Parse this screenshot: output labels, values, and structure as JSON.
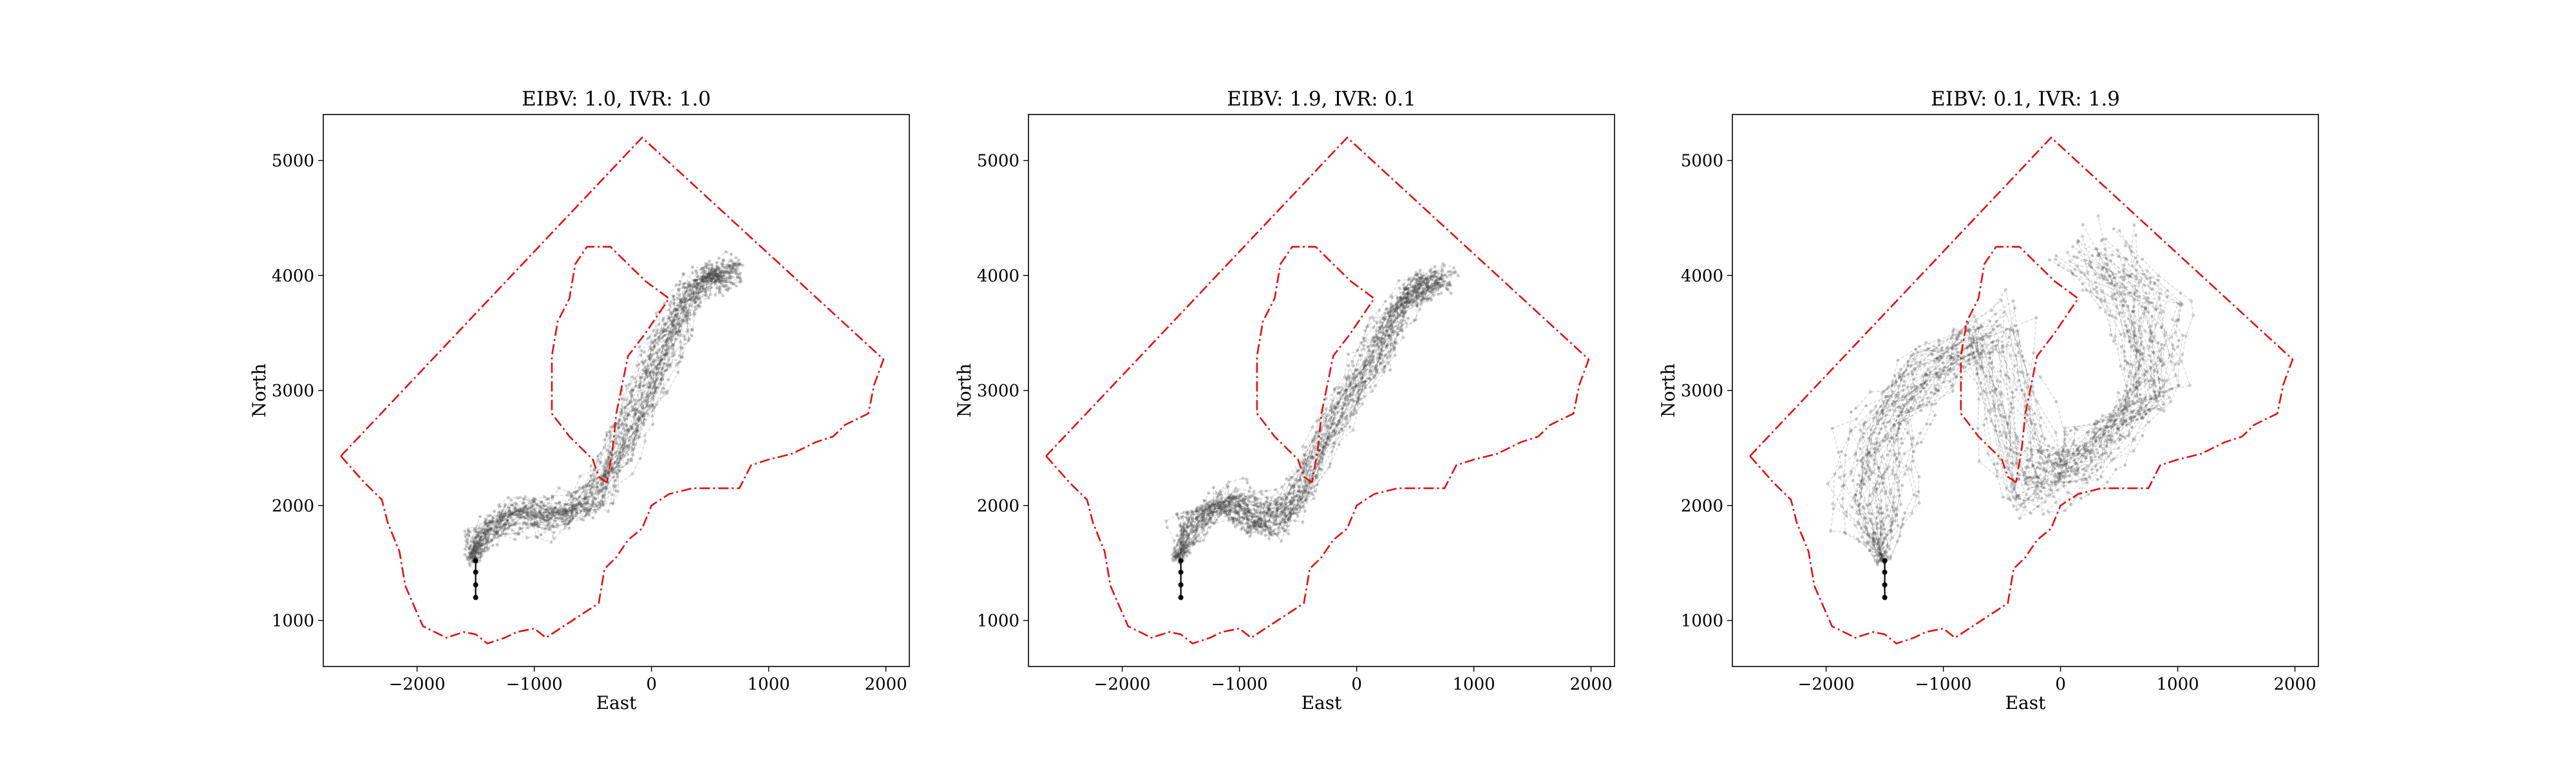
{
  "chart_data": [
    {
      "type": "line",
      "title": "EIBV: 1.0, IVR: 1.0",
      "xlabel": "East",
      "ylabel": "North",
      "xlim": [
        -2800,
        2200
      ],
      "ylim": [
        600,
        5400
      ],
      "xticks": [
        -2000,
        -1000,
        0,
        1000,
        2000
      ],
      "yticks": [
        1000,
        2000,
        3000,
        4000,
        5000
      ],
      "xtick_labels": [
        "−2000",
        "−1000",
        "0",
        "1000",
        "2000"
      ],
      "ytick_labels": [
        "1000",
        "2000",
        "3000",
        "4000",
        "5000"
      ],
      "grid": false,
      "trajectory_count": 40,
      "corridor_path": [
        [
          -1520,
          1550
        ],
        [
          -1400,
          1800
        ],
        [
          -1100,
          1950
        ],
        [
          -800,
          1900
        ],
        [
          -500,
          2050
        ],
        [
          -250,
          2500
        ],
        [
          -50,
          3000
        ],
        [
          150,
          3400
        ],
        [
          300,
          3800
        ],
        [
          500,
          4050
        ],
        [
          700,
          4000
        ]
      ],
      "corridor_spread": 170,
      "start_point": [
        -1500,
        1200
      ],
      "start_stem_top": [
        -1500,
        1520
      ]
    },
    {
      "type": "line",
      "title": "EIBV: 1.9, IVR: 0.1",
      "xlabel": "East",
      "ylabel": "North",
      "xlim": [
        -2800,
        2200
      ],
      "ylim": [
        600,
        5400
      ],
      "xticks": [
        -2000,
        -1000,
        0,
        1000,
        2000
      ],
      "yticks": [
        1000,
        2000,
        3000,
        4000,
        5000
      ],
      "xtick_labels": [
        "−2000",
        "−1000",
        "0",
        "1000",
        "2000"
      ],
      "ytick_labels": [
        "1000",
        "2000",
        "3000",
        "4000",
        "5000"
      ],
      "grid": false,
      "trajectory_count": 40,
      "corridor_path": [
        [
          -1520,
          1550
        ],
        [
          -1350,
          1900
        ],
        [
          -1100,
          2050
        ],
        [
          -900,
          1950
        ],
        [
          -700,
          1850
        ],
        [
          -450,
          2150
        ],
        [
          -150,
          2800
        ],
        [
          150,
          3300
        ],
        [
          350,
          3650
        ],
        [
          550,
          3900
        ],
        [
          700,
          3950
        ]
      ],
      "corridor_spread": 170,
      "start_point": [
        -1500,
        1200
      ],
      "start_stem_top": [
        -1500,
        1520
      ]
    },
    {
      "type": "line",
      "title": "EIBV: 0.1, IVR: 1.9",
      "xlabel": "East",
      "ylabel": "North",
      "xlim": [
        -2800,
        2200
      ],
      "ylim": [
        600,
        5400
      ],
      "xticks": [
        -2000,
        -1000,
        0,
        1000,
        2000
      ],
      "yticks": [
        1000,
        2000,
        3000,
        4000,
        5000
      ],
      "xtick_labels": [
        "−2000",
        "−1000",
        "0",
        "1000",
        "2000"
      ],
      "ytick_labels": [
        "1000",
        "2000",
        "3000",
        "4000",
        "5000"
      ],
      "grid": false,
      "trajectory_count": 40,
      "corridor_path": [
        [
          -1520,
          1550
        ],
        [
          -1600,
          2100
        ],
        [
          -1500,
          2700
        ],
        [
          -1100,
          3200
        ],
        [
          -600,
          3500
        ],
        [
          -300,
          2400
        ],
        [
          0,
          2200
        ],
        [
          400,
          2600
        ],
        [
          800,
          3000
        ],
        [
          700,
          3700
        ],
        [
          300,
          4200
        ]
      ],
      "corridor_spread": 320,
      "start_point": [
        -1500,
        1200
      ],
      "start_stem_top": [
        -1500,
        1520
      ]
    }
  ],
  "boundary": {
    "color": "#e01010",
    "outer": [
      [
        -2650,
        2430
      ],
      [
        -2450,
        2200
      ],
      [
        -2300,
        2050
      ],
      [
        -2250,
        1850
      ],
      [
        -2150,
        1600
      ],
      [
        -2100,
        1300
      ],
      [
        -1950,
        950
      ],
      [
        -1750,
        850
      ],
      [
        -1600,
        900
      ],
      [
        -1500,
        880
      ],
      [
        -1400,
        800
      ],
      [
        -1250,
        850
      ],
      [
        -1150,
        900
      ],
      [
        -1000,
        930
      ],
      [
        -900,
        850
      ],
      [
        -750,
        950
      ],
      [
        -600,
        1050
      ],
      [
        -450,
        1150
      ],
      [
        -400,
        1450
      ],
      [
        -300,
        1550
      ],
      [
        -200,
        1700
      ],
      [
        -80,
        1800
      ],
      [
        0,
        2000
      ],
      [
        150,
        2100
      ],
      [
        350,
        2150
      ],
      [
        600,
        2150
      ],
      [
        750,
        2150
      ],
      [
        850,
        2350
      ],
      [
        1000,
        2400
      ],
      [
        1200,
        2450
      ],
      [
        1400,
        2550
      ],
      [
        1550,
        2600
      ],
      [
        1650,
        2700
      ],
      [
        1750,
        2750
      ],
      [
        1850,
        2800
      ],
      [
        1900,
        3050
      ],
      [
        1980,
        3270
      ],
      [
        -80,
        5200
      ],
      [
        -2650,
        2430
      ]
    ],
    "inner": [
      [
        -380,
        2200
      ],
      [
        -450,
        2250
      ],
      [
        -500,
        2400
      ],
      [
        -700,
        2600
      ],
      [
        -850,
        2800
      ],
      [
        -850,
        3100
      ],
      [
        -850,
        3300
      ],
      [
        -800,
        3600
      ],
      [
        -700,
        3800
      ],
      [
        -650,
        4100
      ],
      [
        -550,
        4250
      ],
      [
        -350,
        4250
      ],
      [
        -200,
        4100
      ],
      [
        -50,
        3950
      ],
      [
        150,
        3800
      ],
      [
        50,
        3650
      ],
      [
        -50,
        3500
      ],
      [
        -200,
        3300
      ],
      [
        -250,
        3050
      ],
      [
        -300,
        2800
      ],
      [
        -330,
        2500
      ],
      [
        -380,
        2200
      ]
    ]
  }
}
